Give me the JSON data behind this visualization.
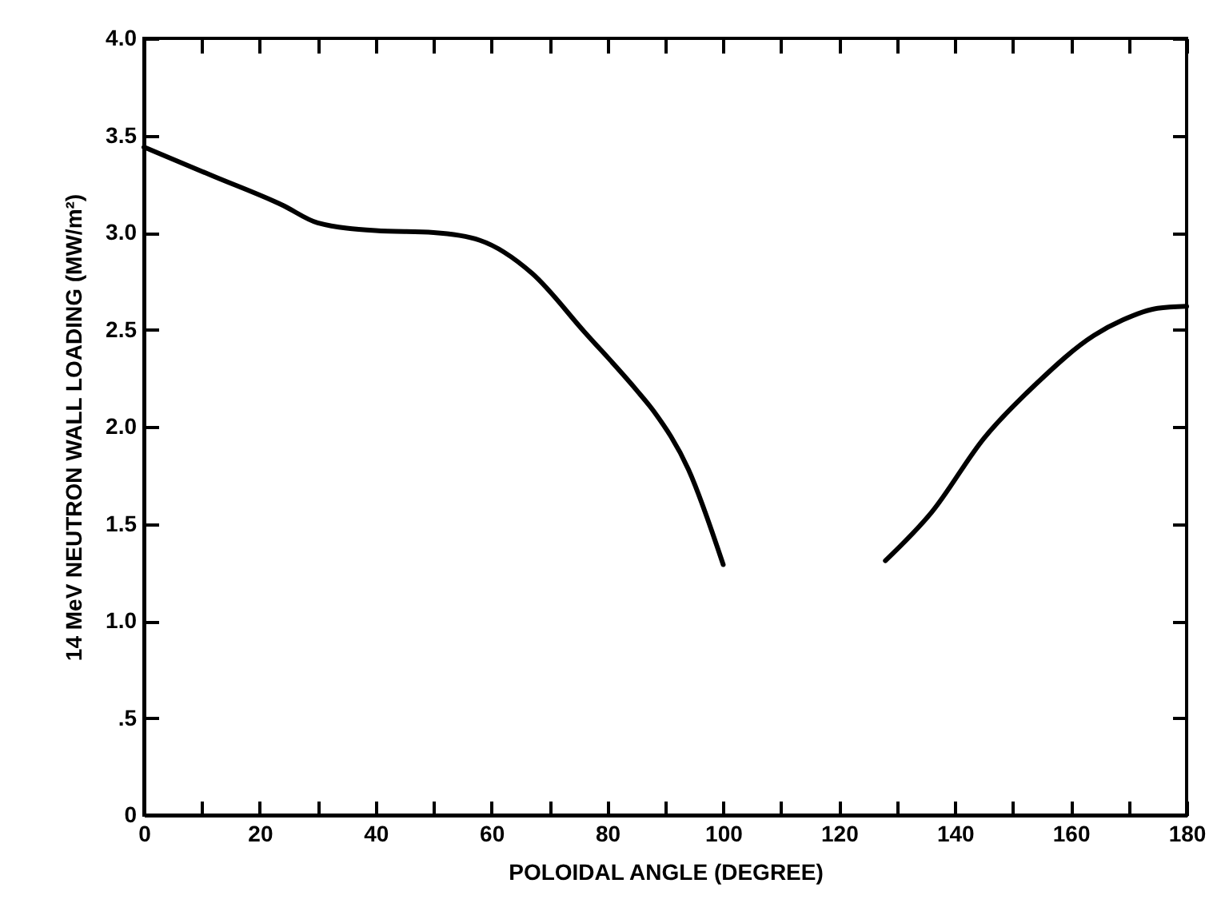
{
  "chart_data": {
    "type": "line",
    "xlabel": "POLOIDAL ANGLE (DEGREE)",
    "ylabel": "14 MeV NEUTRON WALL LOADING (MW/m²)",
    "x": [
      0,
      12,
      24,
      30,
      40,
      50,
      58,
      67,
      76,
      85,
      88,
      94,
      100,
      115,
      128,
      136,
      145,
      154,
      164,
      169,
      175,
      180
    ],
    "series": [
      {
        "color": "#000000",
        "values": [
          3.44,
          3.29,
          3.14,
          3.05,
          3.01,
          3.0,
          2.96,
          2.79,
          2.49,
          2.19,
          2.08,
          1.78,
          1.29,
          null,
          1.31,
          1.56,
          1.94,
          2.22,
          2.47,
          2.55,
          2.61,
          2.62
        ]
      }
    ],
    "xlim": [
      0,
      180
    ],
    "ylim": [
      0,
      4.0
    ],
    "xticks": [
      0,
      {
        "value": 10,
        "label": null
      },
      20,
      {
        "value": 30,
        "label": null
      },
      40,
      {
        "value": 50,
        "label": null
      },
      60,
      {
        "value": 70,
        "label": null
      },
      80,
      {
        "value": 90,
        "label": null
      },
      100,
      {
        "value": 110,
        "label": null
      },
      120,
      {
        "value": 130,
        "label": null
      },
      140,
      {
        "value": 150,
        "label": null
      },
      160,
      {
        "value": 170,
        "label": null
      },
      180
    ],
    "yticks": [
      0,
      {
        "value": 0.5,
        "label": ".5"
      },
      {
        "value": 1.0,
        "label": "1.0"
      },
      1.5,
      {
        "value": 2.0,
        "label": "2.0"
      },
      2.5,
      {
        "value": 3.0,
        "label": "3.0"
      },
      3.5,
      {
        "value": 4.0,
        "label": "4.0"
      }
    ],
    "grid": false,
    "marker": "none",
    "line_style": "solid"
  }
}
